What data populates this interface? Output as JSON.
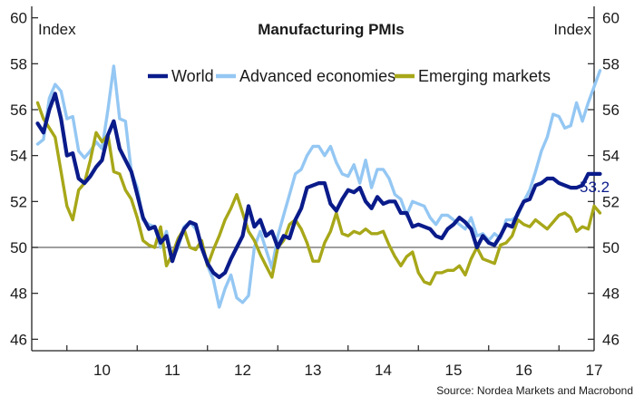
{
  "chart_data": {
    "type": "line",
    "title": "Manufacturing PMIs",
    "ylabel_left": "Index",
    "ylabel_right": "Index",
    "ylim": [
      45.5,
      60.5
    ],
    "yticks": [
      46,
      48,
      50,
      52,
      54,
      56,
      58,
      60
    ],
    "xlim": [
      2009.5,
      2017.5
    ],
    "xticks": [
      "10",
      "11",
      "12",
      "13",
      "14",
      "15",
      "16",
      "17"
    ],
    "reference_line": 50,
    "legend_position": "top-center",
    "end_label": "53.2",
    "source": "Source: Nordea Markets and Macrobond",
    "colors": {
      "World": "#0a1b8a",
      "Advanced economies": "#94c7f3",
      "Emerging markets": "#a7a719"
    },
    "series": [
      {
        "name": "World",
        "x": [
          2009.5833,
          2009.6667,
          2009.75,
          2009.8333,
          2009.9167,
          2010.0,
          2010.0833,
          2010.1667,
          2010.25,
          2010.3333,
          2010.4167,
          2010.5,
          2010.5833,
          2010.6667,
          2010.75,
          2010.8333,
          2010.9167,
          2011.0,
          2011.0833,
          2011.1667,
          2011.25,
          2011.3333,
          2011.4167,
          2011.5,
          2011.5833,
          2011.6667,
          2011.75,
          2011.8333,
          2011.9167,
          2012.0,
          2012.0833,
          2012.1667,
          2012.25,
          2012.3333,
          2012.4167,
          2012.5,
          2012.5833,
          2012.6667,
          2012.75,
          2012.8333,
          2012.9167,
          2013.0,
          2013.0833,
          2013.1667,
          2013.25,
          2013.3333,
          2013.4167,
          2013.5,
          2013.5833,
          2013.6667,
          2013.75,
          2013.8333,
          2013.9167,
          2014.0,
          2014.0833,
          2014.1667,
          2014.25,
          2014.3333,
          2014.4167,
          2014.5,
          2014.5833,
          2014.6667,
          2014.75,
          2014.8333,
          2014.9167,
          2015.0,
          2015.0833,
          2015.1667,
          2015.25,
          2015.3333,
          2015.4167,
          2015.5,
          2015.5833,
          2015.6667,
          2015.75,
          2015.8333,
          2015.9167,
          2016.0,
          2016.0833,
          2016.1667,
          2016.25,
          2016.3333,
          2016.4167,
          2016.5,
          2016.5833,
          2016.6667,
          2016.75,
          2016.8333,
          2016.9167,
          2017.0,
          2017.0833,
          2017.1667,
          2017.25,
          2017.3333,
          2017.4167,
          2017.5,
          2017.5833
        ],
        "values": [
          55.4,
          55.0,
          56.0,
          56.7,
          55.6,
          54.0,
          54.1,
          53.0,
          52.8,
          53.1,
          53.5,
          53.8,
          54.9,
          55.5,
          54.3,
          53.8,
          53.3,
          52.3,
          51.3,
          50.8,
          50.9,
          50.2,
          50.5,
          49.4,
          50.2,
          50.8,
          51.1,
          51.0,
          50.0,
          49.3,
          48.9,
          48.7,
          48.9,
          49.5,
          50.0,
          50.5,
          51.8,
          50.9,
          51.2,
          50.5,
          50.7,
          50.0,
          50.5,
          50.4,
          51.2,
          51.7,
          52.6,
          52.7,
          52.8,
          52.8,
          51.9,
          51.6,
          52.1,
          52.5,
          52.4,
          52.6,
          52.0,
          51.7,
          52.2,
          51.9,
          52.0,
          52.0,
          51.5,
          51.5,
          50.9,
          51.0,
          50.9,
          50.8,
          50.5,
          50.4,
          50.8,
          51.0,
          51.3,
          51.1,
          50.8,
          50.0,
          50.5,
          50.2,
          50.1,
          50.5,
          51.0,
          50.9,
          51.5,
          52.0,
          52.1,
          52.7,
          52.8,
          53.0,
          53.0,
          52.8,
          52.7,
          52.6,
          52.6,
          52.7,
          53.2,
          53.2,
          53.2
        ]
      },
      {
        "name": "Advanced economies",
        "x": [
          2009.5833,
          2009.6667,
          2009.75,
          2009.8333,
          2009.9167,
          2010.0,
          2010.0833,
          2010.1667,
          2010.25,
          2010.3333,
          2010.4167,
          2010.5,
          2010.5833,
          2010.6667,
          2010.75,
          2010.8333,
          2010.9167,
          2011.0,
          2011.0833,
          2011.1667,
          2011.25,
          2011.3333,
          2011.4167,
          2011.5,
          2011.5833,
          2011.6667,
          2011.75,
          2011.8333,
          2011.9167,
          2012.0,
          2012.0833,
          2012.1667,
          2012.25,
          2012.3333,
          2012.4167,
          2012.5,
          2012.5833,
          2012.6667,
          2012.75,
          2012.8333,
          2012.9167,
          2013.0,
          2013.0833,
          2013.1667,
          2013.25,
          2013.3333,
          2013.4167,
          2013.5,
          2013.5833,
          2013.6667,
          2013.75,
          2013.8333,
          2013.9167,
          2014.0,
          2014.0833,
          2014.1667,
          2014.25,
          2014.3333,
          2014.4167,
          2014.5,
          2014.5833,
          2014.6667,
          2014.75,
          2014.8333,
          2014.9167,
          2015.0,
          2015.0833,
          2015.1667,
          2015.25,
          2015.3333,
          2015.4167,
          2015.5,
          2015.5833,
          2015.6667,
          2015.75,
          2015.8333,
          2015.9167,
          2016.0,
          2016.0833,
          2016.1667,
          2016.25,
          2016.3333,
          2016.4167,
          2016.5,
          2016.5833,
          2016.6667,
          2016.75,
          2016.8333,
          2016.9167,
          2017.0,
          2017.0833,
          2017.1667,
          2017.25,
          2017.3333,
          2017.4167,
          2017.5,
          2017.5833
        ],
        "values": [
          54.5,
          54.7,
          56.5,
          57.1,
          56.8,
          55.6,
          55.7,
          54.2,
          53.9,
          54.2,
          54.6,
          54.3,
          56.0,
          57.9,
          55.6,
          55.5,
          53.3,
          52.6,
          51.2,
          51.0,
          50.9,
          50.0,
          50.7,
          49.5,
          50.0,
          50.9,
          51.1,
          50.8,
          50.2,
          49.2,
          48.6,
          47.4,
          48.2,
          48.8,
          47.8,
          47.6,
          47.9,
          50.0,
          50.7,
          49.9,
          49.1,
          50.5,
          51.4,
          52.3,
          53.2,
          53.4,
          54.0,
          54.4,
          54.4,
          54.0,
          54.4,
          53.7,
          53.2,
          53.1,
          53.6,
          52.8,
          53.8,
          52.6,
          53.4,
          53.4,
          53.0,
          52.3,
          52.1,
          51.4,
          52.0,
          51.9,
          51.8,
          51.3,
          51.0,
          51.4,
          51.4,
          51.2,
          51.0,
          50.8,
          51.3,
          50.5,
          50.6,
          50.3,
          50.6,
          50.4,
          51.2,
          51.2,
          51.4,
          52.0,
          52.5,
          53.3,
          54.2,
          54.8,
          55.8,
          55.7,
          55.2,
          55.3,
          56.3,
          55.5,
          56.3,
          57.0,
          57.7
        ]
      },
      {
        "name": "Emerging markets",
        "x": [
          2009.5833,
          2009.6667,
          2009.75,
          2009.8333,
          2009.9167,
          2010.0,
          2010.0833,
          2010.1667,
          2010.25,
          2010.3333,
          2010.4167,
          2010.5,
          2010.5833,
          2010.6667,
          2010.75,
          2010.8333,
          2010.9167,
          2011.0,
          2011.0833,
          2011.1667,
          2011.25,
          2011.3333,
          2011.4167,
          2011.5,
          2011.5833,
          2011.6667,
          2011.75,
          2011.8333,
          2011.9167,
          2012.0,
          2012.0833,
          2012.1667,
          2012.25,
          2012.3333,
          2012.4167,
          2012.5,
          2012.5833,
          2012.6667,
          2012.75,
          2012.8333,
          2012.9167,
          2013.0,
          2013.0833,
          2013.1667,
          2013.25,
          2013.3333,
          2013.4167,
          2013.5,
          2013.5833,
          2013.6667,
          2013.75,
          2013.8333,
          2013.9167,
          2014.0,
          2014.0833,
          2014.1667,
          2014.25,
          2014.3333,
          2014.4167,
          2014.5,
          2014.5833,
          2014.6667,
          2014.75,
          2014.8333,
          2014.9167,
          2015.0,
          2015.0833,
          2015.1667,
          2015.25,
          2015.3333,
          2015.4167,
          2015.5,
          2015.5833,
          2015.6667,
          2015.75,
          2015.8333,
          2015.9167,
          2016.0,
          2016.0833,
          2016.1667,
          2016.25,
          2016.3333,
          2016.4167,
          2016.5,
          2016.5833,
          2016.6667,
          2016.75,
          2016.8333,
          2016.9167,
          2017.0,
          2017.0833,
          2017.1667,
          2017.25,
          2017.3333,
          2017.4167,
          2017.5,
          2017.5833
        ],
        "values": [
          56.3,
          55.6,
          55.2,
          54.8,
          53.3,
          51.8,
          51.2,
          52.5,
          52.8,
          53.8,
          55.0,
          54.6,
          54.9,
          53.3,
          53.2,
          52.5,
          52.1,
          51.3,
          50.3,
          50.1,
          50.0,
          50.9,
          49.2,
          49.7,
          50.4,
          50.8,
          50.0,
          49.9,
          50.3,
          49.2,
          49.9,
          50.5,
          51.2,
          51.7,
          52.3,
          51.5,
          50.7,
          50.3,
          49.7,
          49.2,
          48.7,
          50.0,
          50.3,
          51.0,
          51.2,
          50.8,
          50.2,
          49.4,
          49.4,
          50.2,
          50.7,
          51.5,
          50.6,
          50.5,
          50.7,
          50.6,
          50.8,
          50.6,
          50.6,
          50.7,
          50.1,
          49.6,
          49.2,
          49.6,
          49.8,
          48.9,
          48.5,
          48.4,
          48.9,
          48.9,
          49.0,
          49.0,
          49.2,
          48.8,
          49.5,
          50.0,
          49.5,
          49.4,
          49.3,
          50.1,
          50.2,
          50.5,
          51.2,
          51.0,
          50.9,
          51.2,
          51.0,
          50.8,
          51.1,
          51.4,
          51.5,
          51.3,
          50.7,
          50.9,
          50.8,
          51.8,
          51.5
        ]
      }
    ]
  }
}
